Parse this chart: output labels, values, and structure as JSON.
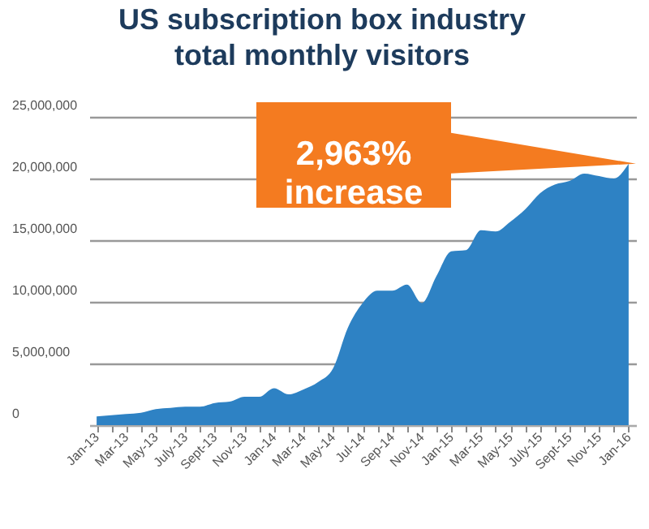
{
  "chart_data": {
    "type": "area",
    "title": "US subscription box industry\ntotal monthly visitors",
    "categories": [
      "Jan-13",
      null,
      "Mar-13",
      null,
      "May-13",
      null,
      "July-13",
      null,
      "Sept-13",
      null,
      "Nov-13",
      null,
      "Jan-14",
      null,
      "Mar-14",
      null,
      "May-14",
      null,
      "Jul-14",
      null,
      "Sep-14",
      null,
      "Nov-14",
      null,
      "Jan-15",
      null,
      "Mar-15",
      null,
      "May-15",
      null,
      "July-15",
      null,
      "Sept-15",
      null,
      "Nov-15",
      null,
      "Jan-16"
    ],
    "series": [
      {
        "color": "#2e82c4",
        "values": [
          700000,
          800000,
          900000,
          1000000,
          1300000,
          1400000,
          1500000,
          1500000,
          1800000,
          1900000,
          2300000,
          2300000,
          3000000,
          2500000,
          2900000,
          3500000,
          4600000,
          7900000,
          9900000,
          10900000,
          10900000,
          11400000,
          9900000,
          12100000,
          14100000,
          14200000,
          15800000,
          15700000,
          16500000,
          17500000,
          18800000,
          19500000,
          19800000,
          20400000,
          20200000,
          20000000,
          21200000
        ]
      }
    ],
    "ylim": [
      0,
      25000000
    ],
    "yticks": [
      {
        "value": 0,
        "label": "0"
      },
      {
        "value": 5000000,
        "label": "5,000,000"
      },
      {
        "value": 10000000,
        "label": "10,000,000"
      },
      {
        "value": 15000000,
        "label": "15,000,000"
      },
      {
        "value": 20000000,
        "label": "20,000,000"
      },
      {
        "value": 25000000,
        "label": "25,000,000"
      }
    ],
    "grid": "y",
    "annotations": [
      "2,963% increase"
    ]
  }
}
